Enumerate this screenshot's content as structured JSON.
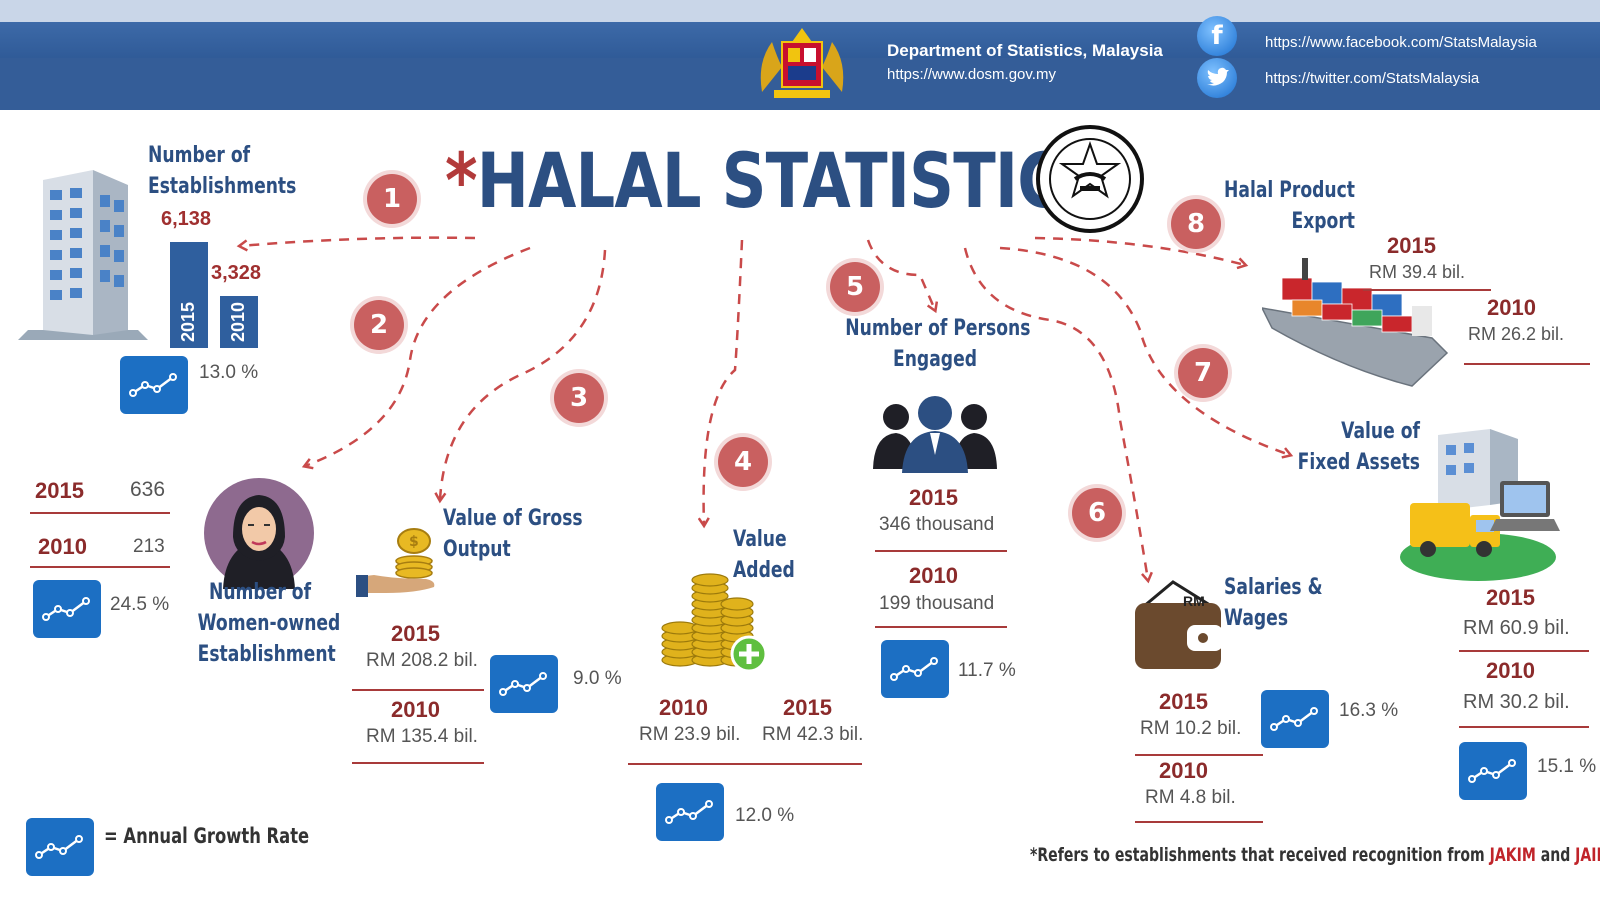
{
  "header": {
    "dept_title": "Department of Statistics, Malaysia",
    "dept_url": "https://www.dosm.gov.my",
    "facebook_url": "https://www.facebook.com/StatsMalaysia",
    "twitter_url": "https://twitter.com/StatsMalaysia",
    "seal_icon": "malaysia-coat-of-arms",
    "facebook_icon": "facebook-icon",
    "twitter_icon": "twitter-icon"
  },
  "title": {
    "star": "*",
    "text": "HALAL STATISTICS"
  },
  "colors": {
    "title_blue": "#2c4f82",
    "accent_red": "#c96060",
    "growth_box_blue": "#1c6fc3",
    "footnote_red": "#c0242a"
  },
  "sections": {
    "s1": {
      "badge": "1",
      "label_line1": "Number of",
      "label_line2": "Establishments",
      "val_2015": "6,138",
      "val_2010": "3,328",
      "year_2015": "2015",
      "year_2010": "2010",
      "growth": "13.0 %"
    },
    "s2": {
      "badge": "2",
      "label_line1": "Number of",
      "label_line2": "Women-owned",
      "label_line3": "Establishment",
      "year_2015": "2015",
      "val_2015": "636",
      "year_2010": "2010",
      "val_2010": "213",
      "growth": "24.5 %"
    },
    "s3": {
      "badge": "3",
      "label_line1": "Value of Gross",
      "label_line2": "Output",
      "year_2015": "2015",
      "val_2015": "RM 208.2 bil.",
      "year_2010": "2010",
      "val_2010": "RM 135.4 bil.",
      "growth": "9.0 %"
    },
    "s4": {
      "badge": "4",
      "label_line1": "Value",
      "label_line2": "Added",
      "year_2010": "2010",
      "val_2010": "RM 23.9 bil.",
      "year_2015": "2015",
      "val_2015": "RM 42.3 bil.",
      "growth": "12.0 %"
    },
    "s5": {
      "badge": "5",
      "label_line1": "Number of Persons",
      "label_line2": "Engaged",
      "year_2015": "2015",
      "val_2015": "346 thousand",
      "year_2010": "2010",
      "val_2010": "199 thousand",
      "growth": "11.7 %"
    },
    "s6": {
      "badge": "6",
      "label_line1": "Salaries &",
      "label_line2": "Wages",
      "wallet_text": "RM",
      "year_2015": "2015",
      "val_2015": "RM 10.2 bil.",
      "year_2010": "2010",
      "val_2010": "RM 4.8 bil.",
      "growth": "16.3 %"
    },
    "s7": {
      "badge": "7",
      "label_line1": "Value of",
      "label_line2": "Fixed Assets",
      "year_2015": "2015",
      "val_2015": "RM 60.9 bil.",
      "year_2010": "2010",
      "val_2010": "RM 30.2 bil.",
      "growth": "15.1 %"
    },
    "s8": {
      "badge": "8",
      "label_line1": "Halal Product",
      "label_line2": "Export",
      "year_2015": "2015",
      "val_2015": "RM 39.4 bil.",
      "year_2010": "2010",
      "val_2010": "RM 26.2 bil."
    }
  },
  "legend": {
    "text": "= Annual Growth Rate",
    "icon": "growth-line-icon"
  },
  "footnote": {
    "prefix": "*Refers to establishments that received recognition from ",
    "jakim": "JAKIM",
    "mid": " and ",
    "jain": "JAIN"
  }
}
